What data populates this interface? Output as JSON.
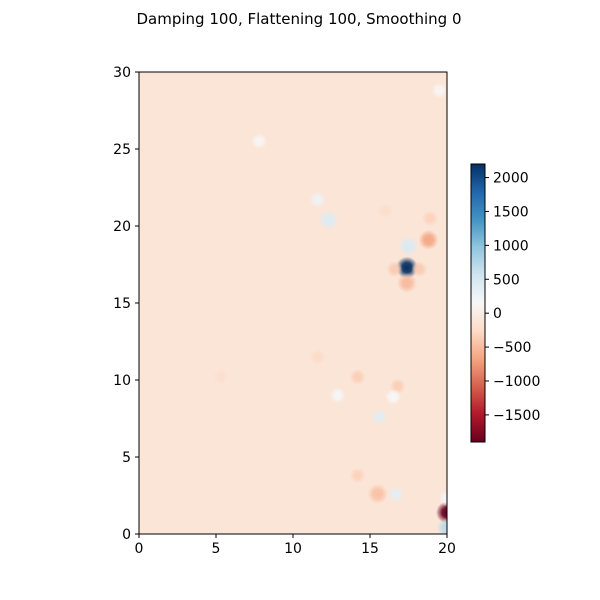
{
  "chart_data": {
    "type": "heatmap",
    "title": "Damping 100, Flattening 100, Smoothing 0",
    "xlim": [
      0,
      20
    ],
    "ylim": [
      0,
      30
    ],
    "x_ticks": [
      "0",
      "5",
      "10",
      "15",
      "20"
    ],
    "y_ticks": [
      "0",
      "5",
      "10",
      "15",
      "20",
      "25",
      "30"
    ],
    "colormap": "RdBu",
    "clim": [
      -1900,
      2200
    ],
    "colorbar_ticks": [
      "−1500",
      "−1000",
      "−500",
      "0",
      "500",
      "1000",
      "1500",
      "2000"
    ],
    "background_value": -120,
    "features": [
      {
        "x": 17.4,
        "y": 17.3,
        "value": 2200
      },
      {
        "x": 20.0,
        "y": 1.4,
        "value": -1900
      },
      {
        "x": 17.5,
        "y": 18.7,
        "value": 450
      },
      {
        "x": 17.4,
        "y": 16.3,
        "value": -500
      },
      {
        "x": 18.8,
        "y": 19.1,
        "value": -650
      },
      {
        "x": 16.6,
        "y": 17.2,
        "value": -380
      },
      {
        "x": 18.2,
        "y": 17.2,
        "value": -380
      },
      {
        "x": 12.3,
        "y": 20.4,
        "value": 420
      },
      {
        "x": 11.6,
        "y": 21.7,
        "value": 250
      },
      {
        "x": 7.8,
        "y": 25.5,
        "value": 120
      },
      {
        "x": 19.5,
        "y": 28.8,
        "value": 120
      },
      {
        "x": 18.9,
        "y": 20.5,
        "value": -320
      },
      {
        "x": 15.6,
        "y": 7.6,
        "value": 380
      },
      {
        "x": 16.8,
        "y": 9.6,
        "value": -350
      },
      {
        "x": 14.2,
        "y": 10.2,
        "value": -350
      },
      {
        "x": 12.9,
        "y": 9.0,
        "value": 180
      },
      {
        "x": 11.6,
        "y": 11.5,
        "value": -250
      },
      {
        "x": 15.5,
        "y": 2.6,
        "value": -450
      },
      {
        "x": 16.7,
        "y": 2.6,
        "value": 350
      },
      {
        "x": 14.2,
        "y": 3.8,
        "value": -320
      },
      {
        "x": 20.0,
        "y": 0.4,
        "value": 700
      },
      {
        "x": 20.0,
        "y": 2.3,
        "value": 200
      },
      {
        "x": 5.3,
        "y": 10.2,
        "value": -200
      },
      {
        "x": 16.5,
        "y": 8.9,
        "value": 150
      },
      {
        "x": 16.0,
        "y": 21.0,
        "value": -220
      }
    ]
  }
}
